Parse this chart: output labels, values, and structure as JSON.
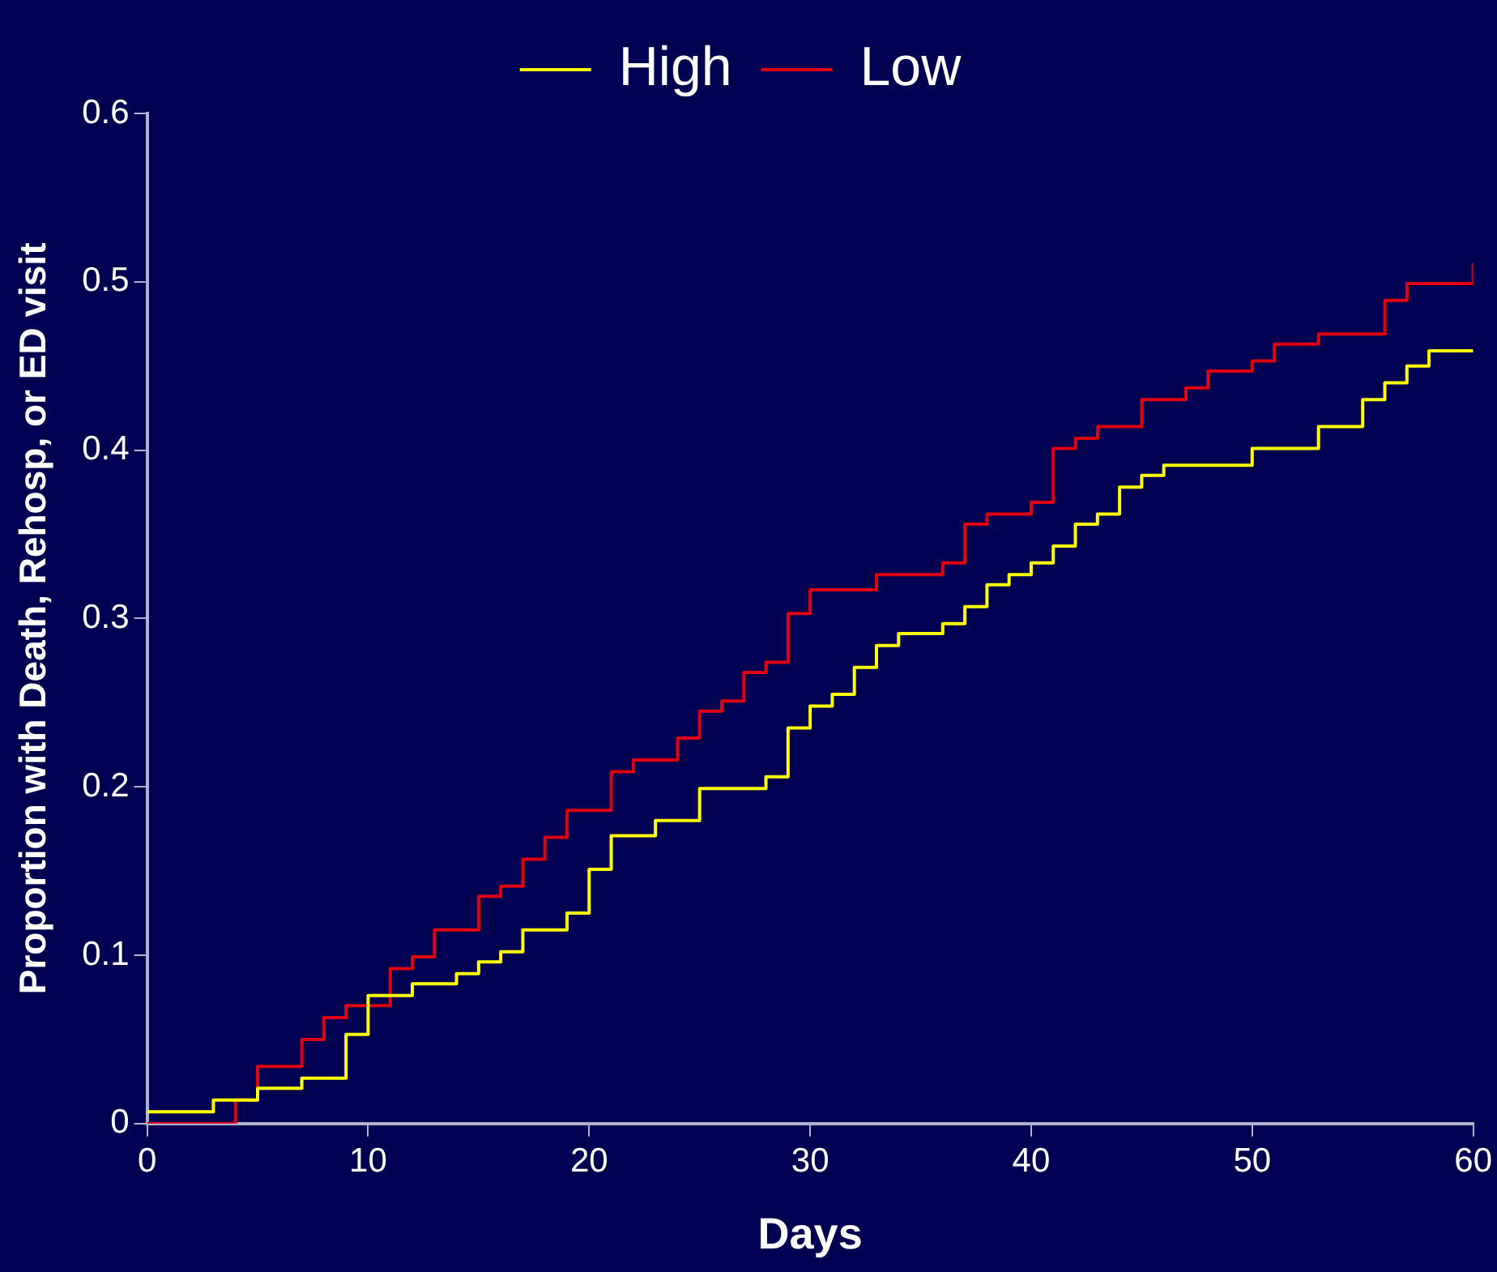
{
  "chart_data": {
    "type": "step",
    "xlabel": "Days",
    "ylabel": "Proportion with Death, Rehosp, or ED visit",
    "xlim": [
      0,
      60
    ],
    "xticks": [
      0,
      10,
      20,
      30,
      40,
      50,
      60
    ],
    "ylim": [
      0,
      0.6
    ],
    "yticks": [
      0,
      0.1,
      0.2,
      0.3,
      0.4,
      0.5,
      0.6
    ],
    "grid": false,
    "legend": "top",
    "series": [
      {
        "name": "High",
        "color": "#ffff00",
        "x": [
          0,
          3,
          5,
          7,
          9,
          10,
          12,
          14,
          15,
          16,
          17,
          19,
          20,
          21,
          23,
          25,
          28,
          29,
          30,
          31,
          32,
          33,
          34,
          36,
          37,
          38,
          39,
          40,
          41,
          42,
          43,
          44,
          45,
          46,
          50,
          53,
          55,
          56,
          57,
          58,
          60
        ],
        "values": [
          0.007,
          0.014,
          0.021,
          0.027,
          0.053,
          0.076,
          0.083,
          0.089,
          0.096,
          0.102,
          0.115,
          0.125,
          0.151,
          0.171,
          0.18,
          0.199,
          0.206,
          0.235,
          0.248,
          0.255,
          0.271,
          0.284,
          0.291,
          0.297,
          0.307,
          0.32,
          0.326,
          0.333,
          0.343,
          0.356,
          0.362,
          0.378,
          0.385,
          0.391,
          0.401,
          0.414,
          0.43,
          0.44,
          0.45,
          0.459,
          0.459
        ]
      },
      {
        "name": "Low",
        "color": "#e00010",
        "x": [
          0,
          4,
          5,
          7,
          8,
          9,
          11,
          12,
          13,
          15,
          16,
          17,
          18,
          19,
          21,
          22,
          24,
          25,
          26,
          27,
          28,
          29,
          30,
          33,
          36,
          37,
          38,
          40,
          41,
          42,
          43,
          45,
          47,
          48,
          50,
          51,
          53,
          56,
          57,
          60
        ],
        "values": [
          0,
          0.014,
          0.034,
          0.05,
          0.063,
          0.07,
          0.092,
          0.099,
          0.115,
          0.135,
          0.141,
          0.157,
          0.17,
          0.186,
          0.209,
          0.216,
          0.229,
          0.245,
          0.251,
          0.268,
          0.274,
          0.303,
          0.317,
          0.326,
          0.333,
          0.356,
          0.362,
          0.369,
          0.401,
          0.407,
          0.414,
          0.43,
          0.437,
          0.447,
          0.453,
          0.463,
          0.469,
          0.489,
          0.499,
          0.511
        ]
      }
    ]
  }
}
